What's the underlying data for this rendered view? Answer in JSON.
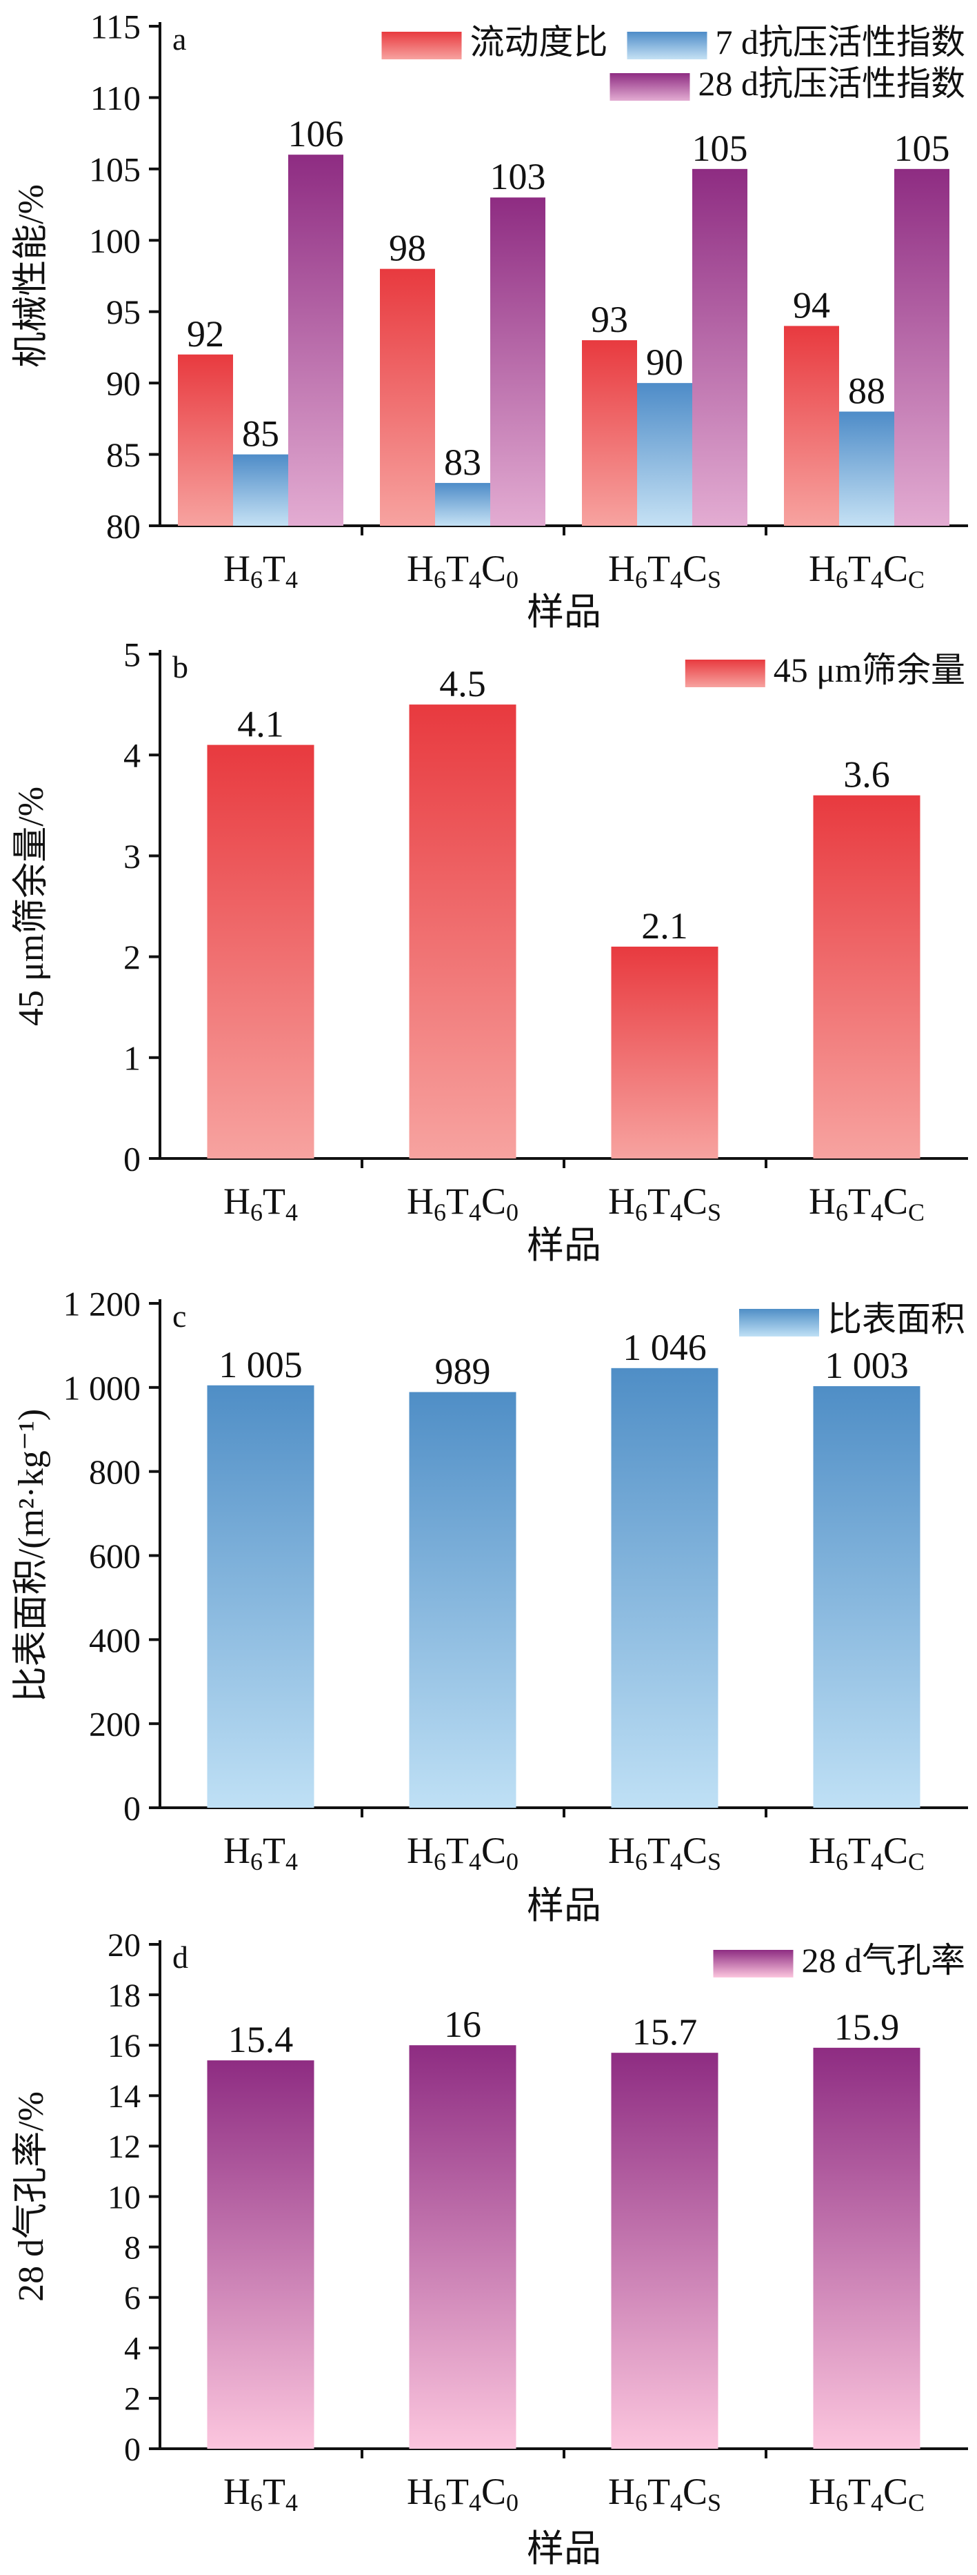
{
  "colors": {
    "red": [
      "#e83a3f",
      "#f7a3a0"
    ],
    "blue": [
      "#4e8cc8",
      "#c5e1f4"
    ],
    "purple": [
      "#8e2c82",
      "#e3acd2"
    ],
    "blueTall": [
      "#4f8ec6",
      "#bfe0f5"
    ],
    "purplePink": [
      "#8e2c82",
      "#fcc6de"
    ]
  },
  "chart_data": [
    {
      "type": "bar",
      "panel": "a",
      "ylabel": "机械性能/%",
      "xlabel": "样品",
      "ylim": [
        80,
        115
      ],
      "yticks": [
        80,
        85,
        90,
        95,
        100,
        105,
        110,
        115
      ],
      "categories": [
        {
          "base": "H",
          "s1": "6",
          "mid": "T",
          "s2": "4",
          "tail": "",
          "s3": ""
        },
        {
          "base": "H",
          "s1": "6",
          "mid": "T",
          "s2": "4",
          "tail": "C",
          "s3": "0"
        },
        {
          "base": "H",
          "s1": "6",
          "mid": "T",
          "s2": "4",
          "tail": "C",
          "s3": "S"
        },
        {
          "base": "H",
          "s1": "6",
          "mid": "T",
          "s2": "4",
          "tail": "C",
          "s3": "C"
        }
      ],
      "series": [
        {
          "name": "流动度比",
          "values": [
            92,
            98,
            93,
            94
          ],
          "color": "red"
        },
        {
          "name": "7 d抗压活性指数",
          "values": [
            85,
            83,
            90,
            88
          ],
          "color": "blue"
        },
        {
          "name": "28 d抗压活性指数",
          "values": [
            106,
            103,
            105,
            105
          ],
          "color": "purple"
        }
      ],
      "labels": [
        [
          "92",
          "98",
          "93",
          "94"
        ],
        [
          "85",
          "83",
          "90",
          "88"
        ],
        [
          "106",
          "103",
          "105",
          "105"
        ]
      ],
      "legend": "top-right",
      "grid": false
    },
    {
      "type": "bar",
      "panel": "b",
      "ylabel": "45 μm筛余量/%",
      "xlabel": "样品",
      "ylim": [
        0,
        5
      ],
      "yticks": [
        0,
        1,
        2,
        3,
        4,
        5
      ],
      "categories": [
        {
          "base": "H",
          "s1": "6",
          "mid": "T",
          "s2": "4",
          "tail": "",
          "s3": ""
        },
        {
          "base": "H",
          "s1": "6",
          "mid": "T",
          "s2": "4",
          "tail": "C",
          "s3": "0"
        },
        {
          "base": "H",
          "s1": "6",
          "mid": "T",
          "s2": "4",
          "tail": "C",
          "s3": "S"
        },
        {
          "base": "H",
          "s1": "6",
          "mid": "T",
          "s2": "4",
          "tail": "C",
          "s3": "C"
        }
      ],
      "series": [
        {
          "name": "45 μm筛余量",
          "values": [
            4.1,
            4.5,
            2.1,
            3.6
          ],
          "color": "red"
        }
      ],
      "labels": [
        [
          "4.1",
          "4.5",
          "2.1",
          "3.6"
        ]
      ],
      "legend": "top-right",
      "grid": false
    },
    {
      "type": "bar",
      "panel": "c",
      "ylabel": "比表面积/(m²·kg⁻¹)",
      "xlabel": "样品",
      "ylim": [
        0,
        1200
      ],
      "yticks": [
        0,
        200,
        400,
        600,
        800,
        1000,
        1200
      ],
      "yticklabels": [
        "0",
        "200",
        "400",
        "600",
        "800",
        "1 000",
        "1 200"
      ],
      "categories": [
        {
          "base": "H",
          "s1": "6",
          "mid": "T",
          "s2": "4",
          "tail": "",
          "s3": ""
        },
        {
          "base": "H",
          "s1": "6",
          "mid": "T",
          "s2": "4",
          "tail": "C",
          "s3": "0"
        },
        {
          "base": "H",
          "s1": "6",
          "mid": "T",
          "s2": "4",
          "tail": "C",
          "s3": "S"
        },
        {
          "base": "H",
          "s1": "6",
          "mid": "T",
          "s2": "4",
          "tail": "C",
          "s3": "C"
        }
      ],
      "series": [
        {
          "name": "比表面积",
          "values": [
            1005,
            989,
            1046,
            1003
          ],
          "color": "blueTall"
        }
      ],
      "labels": [
        [
          "1 005",
          "989",
          "1 046",
          "1 003"
        ]
      ],
      "legend": "top-right",
      "grid": false
    },
    {
      "type": "bar",
      "panel": "d",
      "ylabel": "28 d气孔率/%",
      "xlabel": "样品",
      "ylim": [
        0,
        20
      ],
      "yticks": [
        0,
        2,
        4,
        6,
        8,
        10,
        12,
        14,
        16,
        18,
        20
      ],
      "categories": [
        {
          "base": "H",
          "s1": "6",
          "mid": "T",
          "s2": "4",
          "tail": "",
          "s3": ""
        },
        {
          "base": "H",
          "s1": "6",
          "mid": "T",
          "s2": "4",
          "tail": "C",
          "s3": "0"
        },
        {
          "base": "H",
          "s1": "6",
          "mid": "T",
          "s2": "4",
          "tail": "C",
          "s3": "S"
        },
        {
          "base": "H",
          "s1": "6",
          "mid": "T",
          "s2": "4",
          "tail": "C",
          "s3": "C"
        }
      ],
      "series": [
        {
          "name": "28 d气孔率",
          "values": [
            15.4,
            16,
            15.7,
            15.9
          ],
          "color": "purplePink"
        }
      ],
      "labels": [
        [
          "15.4",
          "16",
          "15.7",
          "15.9"
        ]
      ],
      "legend": "top-right",
      "grid": false
    }
  ]
}
